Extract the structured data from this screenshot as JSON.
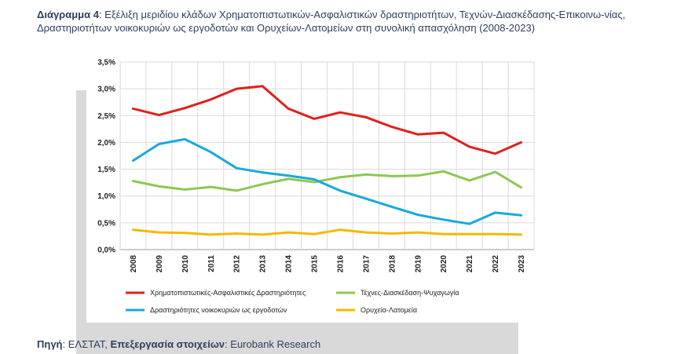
{
  "caption": {
    "label": "Διάγραμμα 4",
    "text": ": Εξέλιξη μεριδίου κλάδων Χρηματοπιστωτικών-Ασφαλιστικών δραστηριοτήτων, Τεχνών-Διασκέδασης-Επικοινω-νίας, Δραστηριοτήτων νοικοκυριών ως εργοδοτών και Ορυχείων-Λατομείων στη συνολική απασχόληση (2008-2023)"
  },
  "source": {
    "label": "Πηγή",
    "value": ": ΕΛΣΤΑΤ, ",
    "processing_label": "Επεξεργασία στοιχείων",
    "processing_value": ": Eurobank Research"
  },
  "chart_data": {
    "type": "line",
    "x": [
      "2008",
      "2009",
      "2010",
      "2011",
      "2012",
      "2013",
      "2014",
      "2015",
      "2016",
      "2017",
      "2018",
      "2019",
      "2020",
      "2021",
      "2022",
      "2023"
    ],
    "yticks": [
      "0,0%",
      "0,5%",
      "1,0%",
      "1,5%",
      "2,0%",
      "2,5%",
      "3,0%",
      "3,5%"
    ],
    "ylim": [
      0,
      3.5
    ],
    "grid": true,
    "legend_position": "bottom",
    "series": [
      {
        "name": "Χρηματοπιστωτικές-Ασφαλιστικές Δραστηριότητες",
        "color": "#e0201b",
        "values": [
          2.63,
          2.51,
          2.64,
          2.8,
          3.0,
          3.05,
          2.63,
          2.44,
          2.56,
          2.47,
          2.29,
          2.15,
          2.18,
          1.92,
          1.79,
          2.0
        ]
      },
      {
        "name": "Τέχνες-Διασκέδαση-Ψυχαγωγία",
        "color": "#8cc850",
        "values": [
          1.28,
          1.18,
          1.12,
          1.17,
          1.1,
          1.22,
          1.32,
          1.26,
          1.35,
          1.4,
          1.37,
          1.38,
          1.46,
          1.29,
          1.45,
          1.16
        ]
      },
      {
        "name": "Δραστηριότητες νοικοκυριών ως εργοδοτών",
        "color": "#1aa8dd",
        "values": [
          1.66,
          1.97,
          2.06,
          1.82,
          1.52,
          1.44,
          1.38,
          1.31,
          1.1,
          0.95,
          0.8,
          0.65,
          0.56,
          0.48,
          0.69,
          0.64
        ]
      },
      {
        "name": "Ορυχεία-Λατομεία",
        "color": "#f5b800",
        "values": [
          0.37,
          0.32,
          0.31,
          0.28,
          0.3,
          0.28,
          0.32,
          0.29,
          0.37,
          0.32,
          0.3,
          0.32,
          0.29,
          0.29,
          0.29,
          0.28
        ]
      }
    ]
  }
}
